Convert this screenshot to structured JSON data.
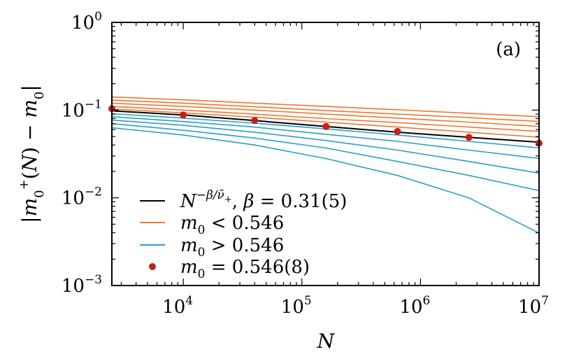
{
  "chart_data": {
    "type": "line",
    "panel_label": "(a)",
    "xlabel": "N",
    "ylabel": "|m0+(N) − m0|",
    "x_scale": "log",
    "y_scale": "log",
    "xlim": [
      2500,
      10000000
    ],
    "ylim": [
      0.001,
      1
    ],
    "x_ticks": [
      {
        "value": 10000,
        "base": "10",
        "exp": "4"
      },
      {
        "value": 100000,
        "base": "10",
        "exp": "5"
      },
      {
        "value": 1000000,
        "base": "10",
        "exp": "6"
      },
      {
        "value": 10000000,
        "base": "10",
        "exp": "7"
      }
    ],
    "y_ticks": [
      {
        "value": 0.001,
        "base": "10",
        "exp": "−3"
      },
      {
        "value": 0.01,
        "base": "10",
        "exp": "−2"
      },
      {
        "value": 0.1,
        "base": "10",
        "exp": "−1"
      },
      {
        "value": 1,
        "base": "10",
        "exp": "0"
      }
    ],
    "grid": false,
    "legend_position": "bottom-left",
    "legend": [
      {
        "label": "N^{−β/ν̄+}, β = 0.31(5)",
        "color": "#000000",
        "kind": "line"
      },
      {
        "label": "m0 < 0.546",
        "color": "#ee7733",
        "kind": "line"
      },
      {
        "label": "m0 > 0.546",
        "color": "#2a9fc4",
        "kind": "line"
      },
      {
        "label": "m0 = 0.546(8)",
        "color": "#c41e1e",
        "kind": "point"
      }
    ],
    "x": [
      2500,
      10000,
      40000,
      160000,
      640000,
      2560000,
      10240000
    ],
    "series": [
      {
        "group": "fit",
        "color": "#000000",
        "values": [
          0.098,
          0.088,
          0.076,
          0.065,
          0.056,
          0.049,
          0.043
        ]
      },
      {
        "group": "m0 < 0.546",
        "color": "#ee7733",
        "values": [
          0.141,
          0.131,
          0.12,
          0.11,
          0.101,
          0.092,
          0.084
        ]
      },
      {
        "group": "m0 < 0.546",
        "color": "#ee7733",
        "values": [
          0.13,
          0.12,
          0.109,
          0.099,
          0.09,
          0.082,
          0.074
        ]
      },
      {
        "group": "m0 < 0.546",
        "color": "#ee7733",
        "values": [
          0.12,
          0.11,
          0.1,
          0.09,
          0.081,
          0.073,
          0.065
        ]
      },
      {
        "group": "m0 < 0.546",
        "color": "#ee7733",
        "values": [
          0.11,
          0.1,
          0.09,
          0.08,
          0.072,
          0.064,
          0.057
        ]
      },
      {
        "group": "m0 < 0.546",
        "color": "#ee7733",
        "values": [
          0.103,
          0.093,
          0.083,
          0.073,
          0.064,
          0.056,
          0.049
        ]
      },
      {
        "group": "m0 > 0.546",
        "color": "#2a9fc4",
        "values": [
          0.091,
          0.081,
          0.071,
          0.061,
          0.052,
          0.044,
          0.037
        ]
      },
      {
        "group": "m0 > 0.546",
        "color": "#2a9fc4",
        "values": [
          0.084,
          0.074,
          0.064,
          0.053,
          0.044,
          0.035,
          0.028
        ]
      },
      {
        "group": "m0 > 0.546",
        "color": "#2a9fc4",
        "values": [
          0.077,
          0.067,
          0.056,
          0.045,
          0.035,
          0.026,
          0.019
        ]
      },
      {
        "group": "m0 > 0.546",
        "color": "#2a9fc4",
        "values": [
          0.07,
          0.059,
          0.048,
          0.037,
          0.026,
          0.018,
          0.012
        ]
      },
      {
        "group": "m0 > 0.546",
        "color": "#2a9fc4",
        "values": [
          0.063,
          0.052,
          0.04,
          0.028,
          0.018,
          0.01,
          0.0039
        ]
      }
    ],
    "points": {
      "color": "#c41e1e",
      "x": [
        2500,
        10000,
        40000,
        160000,
        640000,
        2560000,
        10240000
      ],
      "y": [
        0.104,
        0.088,
        0.076,
        0.065,
        0.057,
        0.049,
        0.042
      ]
    }
  }
}
